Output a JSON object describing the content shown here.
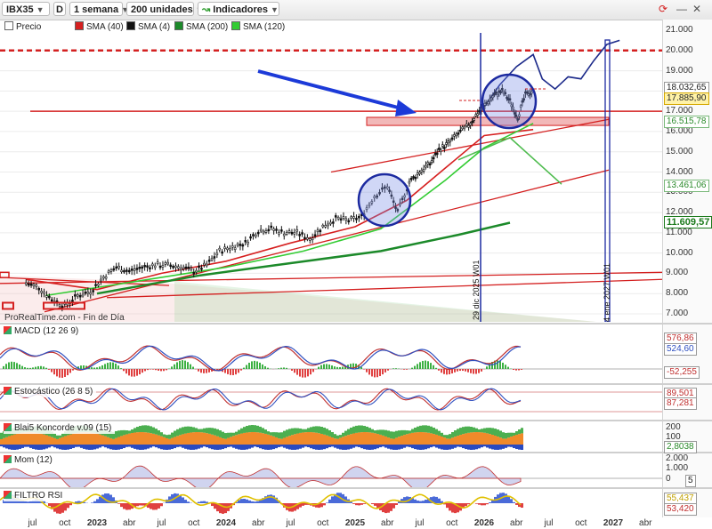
{
  "toolbar": {
    "ticker": "IBX35",
    "mode": "D",
    "period": "1 semana",
    "units": "200 unidades",
    "indicators": "Indicadores"
  },
  "legend": [
    {
      "label": "Precio",
      "color": "#ffffff"
    },
    {
      "label": "SMA (40)",
      "color": "#d62020"
    },
    {
      "label": "SMA (4)",
      "color": "#111111"
    },
    {
      "label": "SMA (200)",
      "color": "#1c8a2a"
    },
    {
      "label": "SMA (120)",
      "color": "#33cc33"
    }
  ],
  "watermark": "ProRealTime.com - Fin de Día",
  "annotations": {
    "vline1": "29 dic 2025 W01",
    "vline2": "4 ene 2027 W01"
  },
  "price_tags": {
    "t1": "18.032,65",
    "t2": "17.885,90",
    "t3": "16.515,78",
    "t4": "13.461,06",
    "t5": "11.609,57"
  },
  "panels": {
    "macd": {
      "label": "MACD (12 26 9)",
      "tags": [
        "576,86",
        "524,60",
        "-52,255"
      ]
    },
    "stoch": {
      "label": "Estocástico (26 8 5)",
      "tags": [
        "89,501",
        "87,281"
      ]
    },
    "blai5": {
      "label": "Blai5 Koncorde v.09 (15)",
      "ticks": [
        "200",
        "100"
      ],
      "tags": [
        "2,8038"
      ]
    },
    "mom": {
      "label": "Mom (12)",
      "ticks": [
        "2.000",
        "1.000",
        "0"
      ],
      "tags": [
        "5"
      ]
    },
    "rsi": {
      "label": "FILTRO RSI",
      "tags": [
        "55,437",
        "53,420"
      ]
    }
  },
  "chart_data": {
    "type": "candlestick",
    "title": "IBX35",
    "y_axis_ticks": [
      21000,
      20000,
      19000,
      18000,
      17000,
      16000,
      15000,
      14000,
      13000,
      12000,
      11000,
      10000,
      9000,
      8000,
      7000
    ],
    "y_tick_labels": [
      "21.000",
      "20.000",
      "19.000",
      "18.000",
      "17.000",
      "16.000",
      "15.000",
      "14.000",
      "13.000",
      "12.000",
      "11.000",
      "10.000",
      "9.000",
      "8.000",
      "7.000"
    ],
    "ylim": [
      6700,
      21700
    ],
    "x_tick_labels": [
      "jul",
      "oct",
      "2023",
      "abr",
      "jul",
      "oct",
      "2024",
      "abr",
      "jul",
      "oct",
      "2025",
      "abr",
      "jul",
      "oct",
      "2026",
      "abr",
      "jul",
      "oct",
      "2027",
      "abr"
    ],
    "x_year_labels": [
      "2023",
      "2024",
      "2025",
      "2026",
      "2027"
    ],
    "price_path": [
      [
        2022.45,
        8500
      ],
      [
        2022.55,
        8300
      ],
      [
        2022.65,
        7700
      ],
      [
        2022.75,
        7400
      ],
      [
        2022.85,
        7900
      ],
      [
        2022.95,
        8100
      ],
      [
        2023.05,
        8800
      ],
      [
        2023.15,
        9300
      ],
      [
        2023.25,
        9100
      ],
      [
        2023.35,
        9300
      ],
      [
        2023.45,
        9400
      ],
      [
        2023.55,
        9400
      ],
      [
        2023.65,
        9300
      ],
      [
        2023.75,
        9100
      ],
      [
        2023.85,
        9400
      ],
      [
        2023.95,
        10100
      ],
      [
        2024.05,
        10300
      ],
      [
        2024.15,
        10500
      ],
      [
        2024.25,
        11100
      ],
      [
        2024.35,
        11200
      ],
      [
        2024.45,
        11000
      ],
      [
        2024.55,
        11000
      ],
      [
        2024.65,
        10700
      ],
      [
        2024.75,
        11300
      ],
      [
        2024.85,
        11700
      ],
      [
        2024.95,
        11600
      ],
      [
        2025.05,
        11800
      ],
      [
        2025.15,
        12800
      ],
      [
        2025.25,
        13300
      ],
      [
        2025.33,
        12000
      ],
      [
        2025.42,
        13500
      ],
      [
        2025.5,
        14000
      ],
      [
        2025.58,
        14400
      ],
      [
        2025.65,
        15100
      ],
      [
        2025.72,
        15400
      ],
      [
        2025.8,
        15900
      ],
      [
        2025.88,
        16300
      ],
      [
        2025.95,
        16900
      ],
      [
        2026.02,
        17400
      ],
      [
        2026.08,
        17800
      ],
      [
        2026.14,
        18000
      ],
      [
        2026.2,
        17500
      ],
      [
        2026.26,
        16700
      ],
      [
        2026.32,
        17800
      ],
      [
        2026.38,
        18000
      ]
    ],
    "series": [
      {
        "name": "SMA (40)",
        "color": "#d62020",
        "points": [
          [
            2022.45,
            8700
          ],
          [
            2023.0,
            8200
          ],
          [
            2023.5,
            9000
          ],
          [
            2024.0,
            9600
          ],
          [
            2024.5,
            10500
          ],
          [
            2025.0,
            11300
          ],
          [
            2025.4,
            12600
          ],
          [
            2025.7,
            14200
          ],
          [
            2026.0,
            15800
          ],
          [
            2026.38,
            16100
          ]
        ]
      },
      {
        "name": "SMA (120)",
        "color": "#33cc33",
        "points": [
          [
            2022.6,
            7900
          ],
          [
            2023.2,
            8500
          ],
          [
            2024.0,
            9300
          ],
          [
            2024.6,
            10100
          ],
          [
            2025.2,
            11200
          ],
          [
            2025.7,
            13600
          ],
          [
            2026.0,
            15200
          ],
          [
            2026.38,
            16400
          ]
        ]
      },
      {
        "name": "SMA (200)",
        "color": "#1c8a2a",
        "points": [
          [
            2023.0,
            8000
          ],
          [
            2023.8,
            8900
          ],
          [
            2024.5,
            9500
          ],
          [
            2025.2,
            10100
          ],
          [
            2025.8,
            10900
          ],
          [
            2026.2,
            11500
          ]
        ]
      },
      {
        "name": "SMA (40) proj",
        "color": "#4dbb4d",
        "points": [
          [
            2025.8,
            14600
          ],
          [
            2026.2,
            15700
          ],
          [
            2026.6,
            13400
          ]
        ]
      },
      {
        "name": "Proyección",
        "color": "#1c2a8a",
        "points": [
          [
            2026.0,
            17200
          ],
          [
            2026.12,
            18300
          ],
          [
            2026.25,
            19200
          ],
          [
            2026.38,
            19800
          ],
          [
            2026.45,
            18600
          ],
          [
            2026.55,
            18100
          ],
          [
            2026.65,
            18700
          ],
          [
            2026.75,
            18600
          ],
          [
            2026.85,
            19500
          ],
          [
            2026.95,
            20300
          ],
          [
            2027.05,
            20500
          ]
        ]
      }
    ],
    "horizontal_levels": [
      {
        "value": 20000,
        "style": "dashed",
        "color": "#d42020"
      },
      {
        "value": 17000,
        "style": "solid",
        "color": "#d42020"
      }
    ],
    "zones": [
      {
        "from": 16300,
        "to": 16700,
        "color": "#f2b8b8"
      }
    ],
    "grid": true
  }
}
